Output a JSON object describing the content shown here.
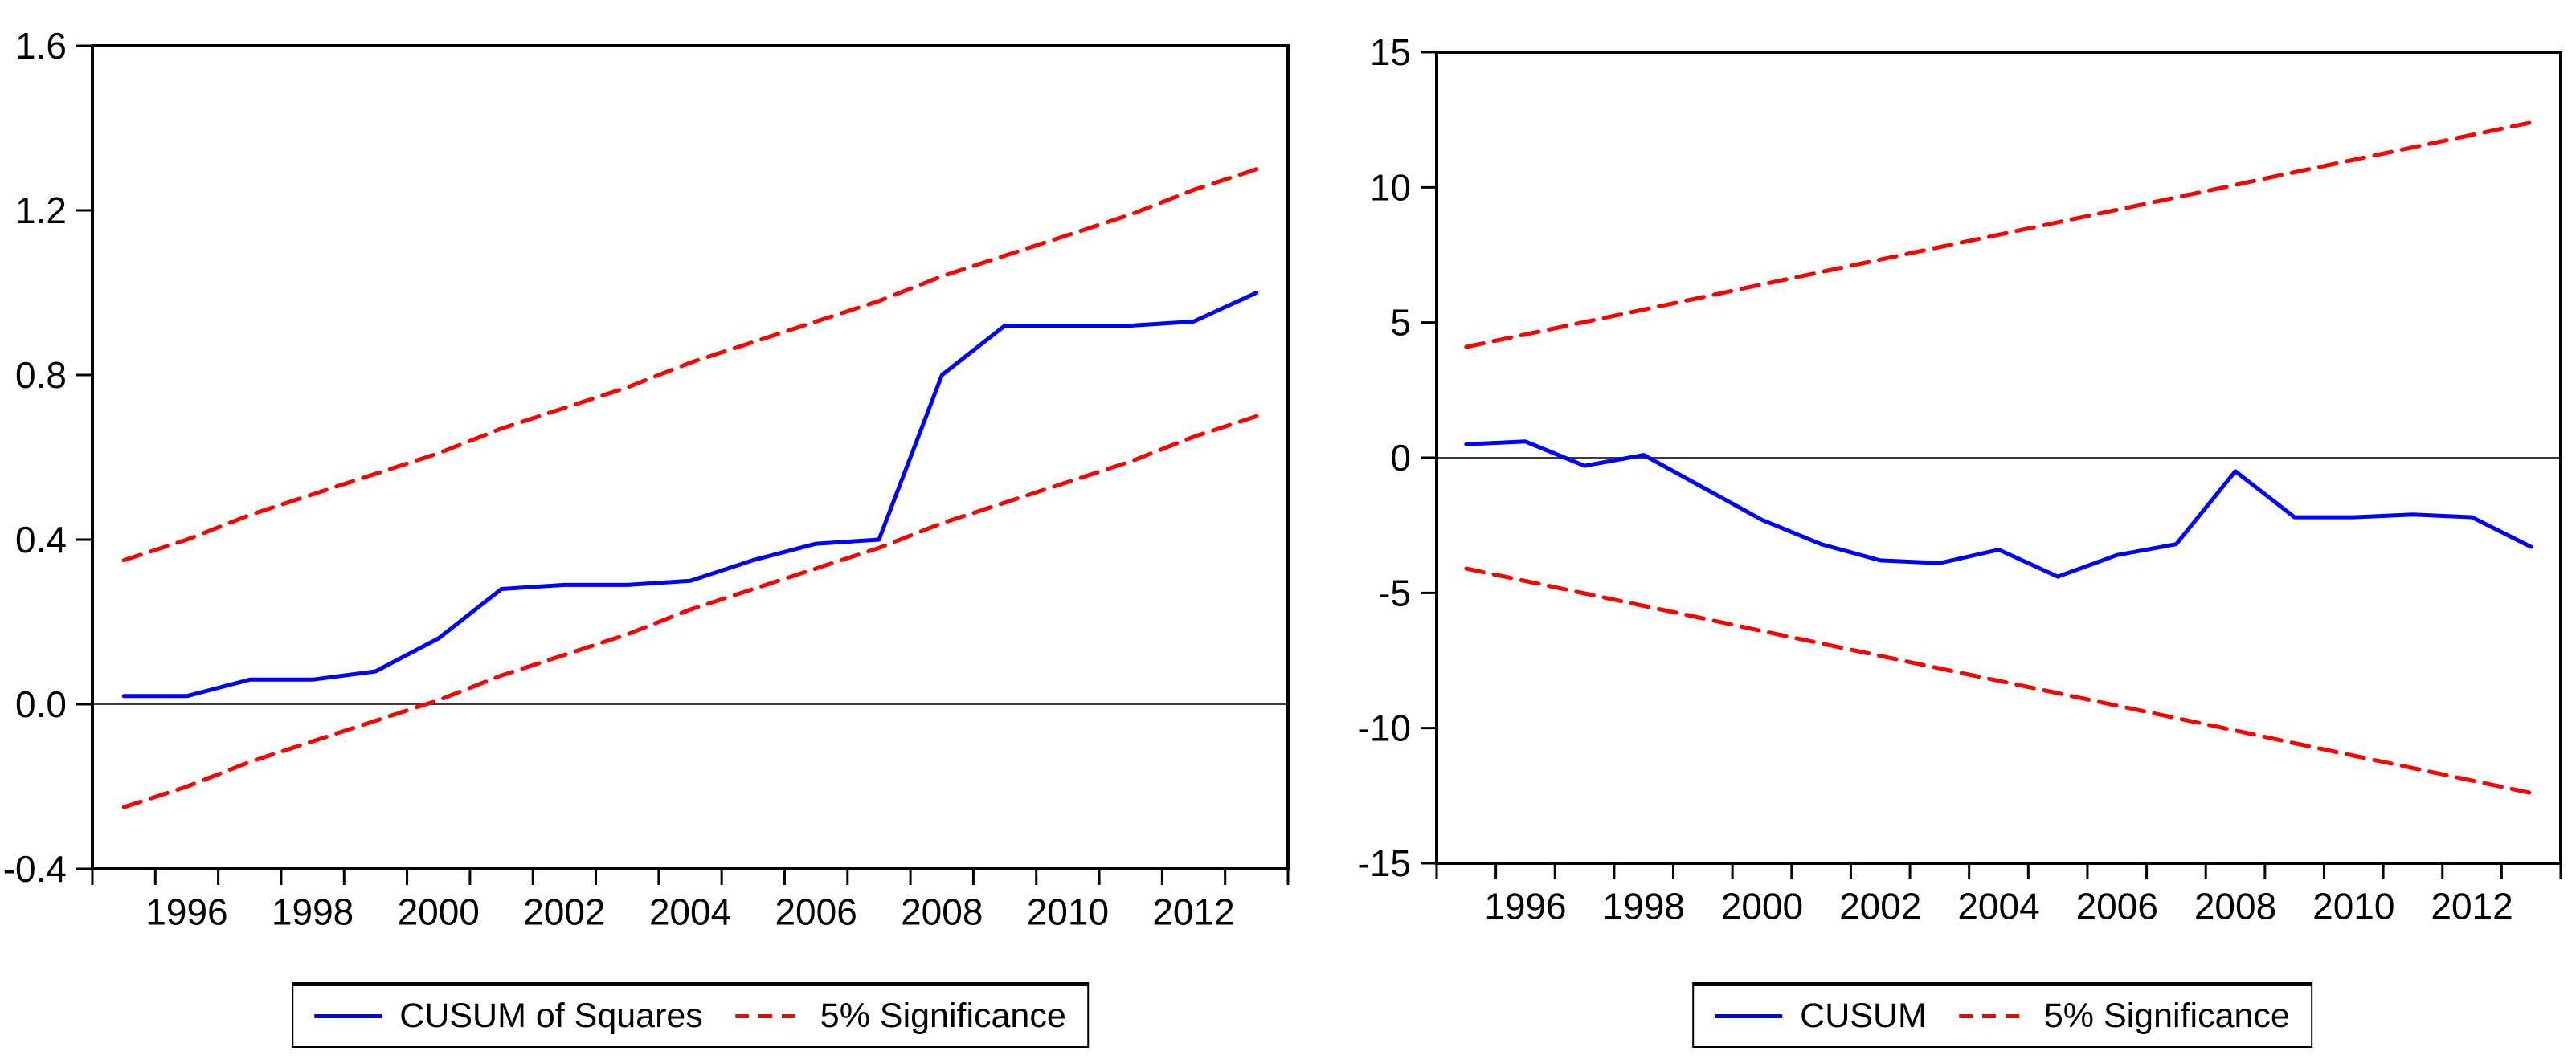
{
  "figure": {
    "background": "#ffffff",
    "description": "Two-panel recursive stability test plot: CUSUM of Squares (left) and CUSUM (right) with 5% significance bounds"
  },
  "colors": {
    "series_blue": "#0000ff",
    "significance_red": "#ff0000",
    "axis_black": "#000000",
    "zero_line_gray": "#3c3c3c"
  },
  "chart_data": [
    {
      "type": "line",
      "name": "cusum-of-squares-chart",
      "title": "",
      "xlabel": "",
      "ylabel": "",
      "grid": false,
      "legend_position": "bottom-center",
      "x": [
        1995,
        1996,
        1997,
        1998,
        1999,
        2000,
        2001,
        2002,
        2003,
        2004,
        2005,
        2006,
        2007,
        2008,
        2009,
        2010,
        2011,
        2012,
        2013
      ],
      "ylim": [
        -0.4,
        1.6
      ],
      "zero_line": 0,
      "y_ticks": [
        {
          "v": 1.6,
          "label": "1.6"
        },
        {
          "v": 1.2,
          "label": "1.2"
        },
        {
          "v": 0.8,
          "label": "0.8"
        },
        {
          "v": 0.4,
          "label": "0.4"
        },
        {
          "v": 0.0,
          "label": "0.0"
        },
        {
          "v": -0.4,
          "label": "-0.4"
        }
      ],
      "x_tick_labels": [
        {
          "year": 1996,
          "label": "1996"
        },
        {
          "year": 1998,
          "label": "1998"
        },
        {
          "year": 2000,
          "label": "2000"
        },
        {
          "year": 2002,
          "label": "2002"
        },
        {
          "year": 2004,
          "label": "2004"
        },
        {
          "year": 2006,
          "label": "2006"
        },
        {
          "year": 2008,
          "label": "2008"
        },
        {
          "year": 2010,
          "label": "2010"
        },
        {
          "year": 2012,
          "label": "2012"
        }
      ],
      "series": [
        {
          "name": "CUSUM of Squares",
          "slug": "cusum-of-squares-line",
          "color_key": "series_blue",
          "style": "solid",
          "values": [
            0.02,
            0.02,
            0.06,
            0.06,
            0.08,
            0.16,
            0.28,
            0.29,
            0.29,
            0.3,
            0.35,
            0.39,
            0.4,
            0.8,
            0.92,
            0.92,
            0.92,
            0.93,
            1.0
          ]
        },
        {
          "name": "5% Significance (upper)",
          "slug": "significance-upper-line",
          "color_key": "significance_red",
          "style": "dashed",
          "values": [
            0.35,
            0.4,
            0.46,
            0.51,
            0.56,
            0.61,
            0.67,
            0.72,
            0.77,
            0.83,
            0.88,
            0.93,
            0.98,
            1.04,
            1.09,
            1.14,
            1.19,
            1.25,
            1.3
          ]
        },
        {
          "name": "5% Significance (lower)",
          "slug": "significance-lower-line",
          "color_key": "significance_red",
          "style": "dashed",
          "values": [
            -0.25,
            -0.2,
            -0.14,
            -0.09,
            -0.04,
            0.01,
            0.07,
            0.12,
            0.17,
            0.23,
            0.28,
            0.33,
            0.38,
            0.44,
            0.49,
            0.54,
            0.59,
            0.65,
            0.7
          ]
        }
      ],
      "legend": [
        {
          "label": "CUSUM of Squares",
          "style": "solid",
          "color_key": "series_blue"
        },
        {
          "label": "5% Significance",
          "style": "dashed",
          "color_key": "significance_red"
        }
      ]
    },
    {
      "type": "line",
      "name": "cusum-chart",
      "title": "",
      "xlabel": "",
      "ylabel": "",
      "grid": false,
      "legend_position": "bottom-center",
      "x": [
        1995,
        1996,
        1997,
        1998,
        1999,
        2000,
        2001,
        2002,
        2003,
        2004,
        2005,
        2006,
        2007,
        2008,
        2009,
        2010,
        2011,
        2012,
        2013
      ],
      "ylim": [
        -15,
        15
      ],
      "zero_line": 0,
      "y_ticks": [
        {
          "v": 15,
          "label": "15"
        },
        {
          "v": 10,
          "label": "10"
        },
        {
          "v": 5,
          "label": "5"
        },
        {
          "v": 0,
          "label": "0"
        },
        {
          "v": -5,
          "label": "-5"
        },
        {
          "v": -10,
          "label": "-10"
        },
        {
          "v": -15,
          "label": "-15"
        }
      ],
      "x_tick_labels": [
        {
          "year": 1996,
          "label": "1996"
        },
        {
          "year": 1998,
          "label": "1998"
        },
        {
          "year": 2000,
          "label": "2000"
        },
        {
          "year": 2002,
          "label": "2002"
        },
        {
          "year": 2004,
          "label": "2004"
        },
        {
          "year": 2006,
          "label": "2006"
        },
        {
          "year": 2008,
          "label": "2008"
        },
        {
          "year": 2010,
          "label": "2010"
        },
        {
          "year": 2012,
          "label": "2012"
        }
      ],
      "series": [
        {
          "name": "CUSUM",
          "slug": "cusum-line",
          "color_key": "series_blue",
          "style": "solid",
          "values": [
            0.5,
            0.6,
            -0.3,
            0.1,
            -1.1,
            -2.3,
            -3.2,
            -3.8,
            -3.9,
            -3.4,
            -4.4,
            -3.6,
            -3.2,
            -0.5,
            -2.2,
            -2.2,
            -2.1,
            -2.2,
            -3.3
          ]
        },
        {
          "name": "5% Significance (upper)",
          "slug": "significance-upper-line",
          "color_key": "significance_red",
          "style": "dashed",
          "values": [
            4.1,
            4.56,
            5.02,
            5.48,
            5.94,
            6.41,
            6.87,
            7.33,
            7.79,
            8.25,
            8.71,
            9.17,
            9.63,
            10.09,
            10.56,
            11.02,
            11.48,
            11.94,
            12.4
          ]
        },
        {
          "name": "5% Significance (lower)",
          "slug": "significance-lower-line",
          "color_key": "significance_red",
          "style": "dashed",
          "values": [
            -4.1,
            -4.56,
            -5.02,
            -5.48,
            -5.94,
            -6.41,
            -6.87,
            -7.33,
            -7.79,
            -8.25,
            -8.71,
            -9.17,
            -9.63,
            -10.09,
            -10.56,
            -11.02,
            -11.48,
            -11.94,
            -12.4
          ]
        }
      ],
      "legend": [
        {
          "label": "CUSUM",
          "style": "solid",
          "color_key": "series_blue"
        },
        {
          "label": "5% Significance",
          "style": "dashed",
          "color_key": "significance_red"
        }
      ]
    }
  ]
}
